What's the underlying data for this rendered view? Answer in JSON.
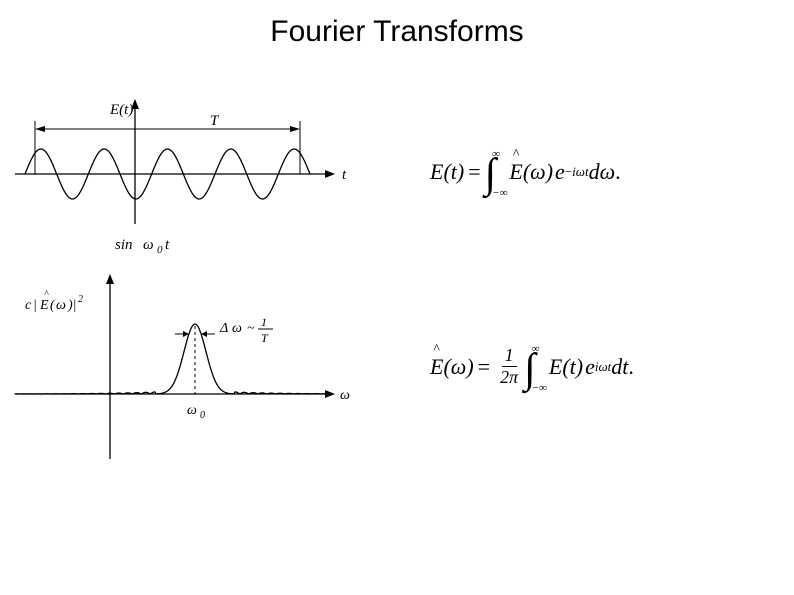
{
  "title": "Fourier Transforms",
  "sine_chart": {
    "type": "line",
    "y_axis_label": "E(t)",
    "x_axis_label": "t",
    "period_label": "T",
    "caption": "sin ω₀t",
    "amplitude": 25,
    "cycles": 4.5,
    "x_range": [
      -20,
      300
    ],
    "y_center": 95,
    "x_axis_y": 95,
    "stroke_color": "#000000",
    "stroke_width": 1.3,
    "background": "#ffffff",
    "font_size": 15,
    "arrow_size": 6
  },
  "spectrum_chart": {
    "type": "line",
    "y_axis_label": "c|Ê(ω)|²",
    "x_axis_label": "ω",
    "peak_label": "ω₀",
    "width_label": "Δω ~ 1/T",
    "peak_height": 70,
    "peak_x": 195,
    "x_axis_y": 130,
    "stroke_color": "#000000",
    "stroke_width": 1.3,
    "background": "#ffffff",
    "font_size": 14,
    "sidelobe_height": 5
  },
  "equation1": {
    "lhs": "E(t)",
    "rhs_integrand1": "Ê(ω)",
    "rhs_exp": "e^{−iωt}",
    "rhs_diff": "dω",
    "lower_limit": "−∞",
    "upper_limit": "∞"
  },
  "equation2": {
    "lhs": "Ê(ω)",
    "prefactor_num": "1",
    "prefactor_den": "2π",
    "rhs_integrand1": "E(t)",
    "rhs_exp": "e^{iωt}",
    "rhs_diff": "dt",
    "lower_limit": "−∞",
    "upper_limit": "∞"
  }
}
